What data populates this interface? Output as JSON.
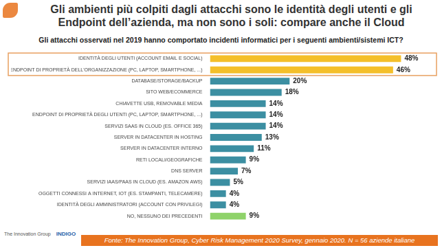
{
  "chart_data": {
    "type": "bar",
    "orientation": "horizontal",
    "title": [
      "Gli ambienti più colpiti dagli attacchi sono le identità degli utenti e gli",
      "Endpoint dell’azienda, ma non sono i soli: compare anche il Cloud"
    ],
    "subtitle": "Gli attacchi osservati nel 2019 hanno comportato incidenti informatici per i seguenti ambienti/sistemi ICT?",
    "categories": [
      "IDENTITÀ DEGLI UTENTI (ACCOUNT EMAIL E SOCIAL)",
      "ENDPOINT DI PROPRIETÀ DELL'ORGANIZZAZIONE (PC, LAPTOP, SMARTPHONE, ...)",
      "DATABASE/STORAGE/BACKUP",
      "SITO WEB/ECOMMERCE",
      "CHIAVETTE USB, REMOVABLE MEDIA",
      "ENDPOINT DI PROPRIETÀ DEGLI UTENTI (PC, LAPTOP, SMARTPHONE, ...)",
      "SERVIZI SAAS IN CLOUD (ES. OFFICE 365)",
      "SERVER IN DATACENTER IN HOSTING",
      "SERVER IN DATACENTER INTERNO",
      "RETI LOCALI/GEOGRAFICHE",
      "DNS SERVER",
      "SERVIZI IAAS/PAAS IN CLOUD (ES. AMAZON AWS)",
      "OGGETTI CONNESSI A INTERNET, IOT (ES. STAMPANTI, TELECAMERE)",
      "IDENTITÀ DEGLI AMMINISTRATORI (ACCOUNT CON PRIVILEGI)",
      "NO, NESSUNO DEI PRECEDENTI"
    ],
    "values": [
      48,
      46,
      20,
      18,
      14,
      14,
      14,
      13,
      11,
      9,
      7,
      5,
      4,
      4,
      9
    ],
    "value_labels": [
      "48%",
      "46%",
      "20%",
      "18%",
      "14%",
      "14%",
      "14%",
      "13%",
      "11%",
      "9%",
      "7%",
      "5%",
      "4%",
      "4%",
      "9%"
    ],
    "colors": [
      "#f4bf2a",
      "#f4bf2a",
      "#3c8fa2",
      "#3c8fa2",
      "#3c8fa2",
      "#3c8fa2",
      "#3c8fa2",
      "#3c8fa2",
      "#3c8fa2",
      "#3c8fa2",
      "#3c8fa2",
      "#3c8fa2",
      "#3c8fa2",
      "#3c8fa2",
      "#8fd36a"
    ],
    "data_labels": true,
    "tick_labels": "y",
    "grid": false,
    "source": "Fonte: The Innovation Group, Cyber Risk Management 2020 Survey, gennaio 2020. N = 56 aziende italiane",
    "logos": [
      "The Innovation Group",
      "INDIGO"
    ]
  }
}
